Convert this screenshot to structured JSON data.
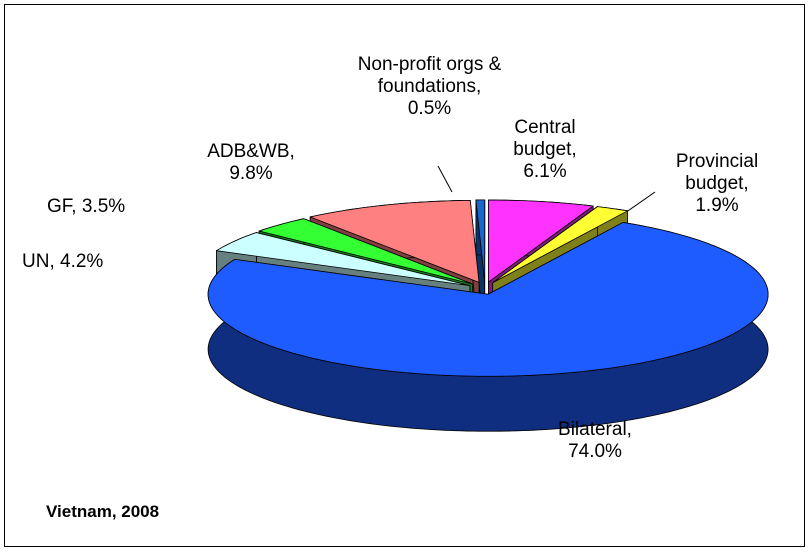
{
  "chart_data": {
    "type": "pie3d",
    "annotation": "Vietnam, 2008",
    "categories": [
      "Central budget,",
      "Provincial budget,",
      "Bilateral,",
      "UN,",
      "GF,",
      "ADB&WB,",
      "Non-profit orgs & foundations,"
    ],
    "values": [
      6.1,
      1.9,
      74.0,
      4.2,
      3.5,
      9.8,
      0.5
    ],
    "value_labels": [
      "6.1%",
      "1.9%",
      "74.0%",
      "4.2%",
      "3.5%",
      "9.8%",
      "0.5%"
    ],
    "colors": [
      "#ff33ff",
      "#ffff33",
      "#1f5cff",
      "#ccffff",
      "#33ff33",
      "#ff8080",
      "#1a66cc"
    ]
  }
}
